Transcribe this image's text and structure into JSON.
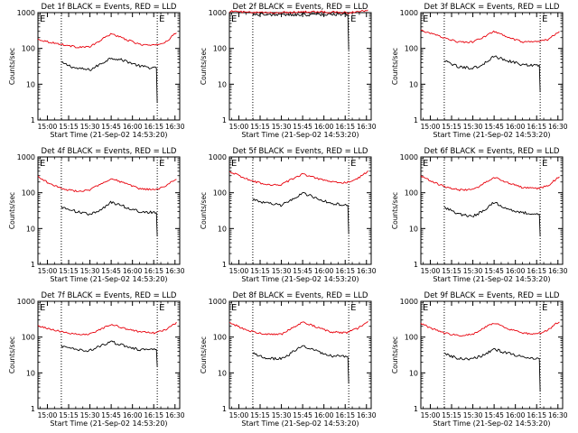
{
  "figure": {
    "colors": {
      "events": "#000000",
      "lld": "#e8000b",
      "axes": "#000000"
    }
  },
  "chart_data": [
    {
      "type": "line",
      "title": "Det 1f BLACK = Events, RED = LLD",
      "xlabel": "Start Time (21-Sep-02 14:53:20)",
      "ylabel": "Counts/sec",
      "x_ticks": [
        "15:00",
        "15:15",
        "15:30",
        "15:45",
        "16:00",
        "16:15",
        "16:30"
      ],
      "x_tick_seconds": [
        400,
        1300,
        2200,
        3100,
        4000,
        4900,
        5800
      ],
      "xlim": [
        0,
        6000
      ],
      "ylim": [
        1,
        1000
      ],
      "y_scale": "log",
      "y_ticks": [
        "1",
        "10",
        "100",
        "1000"
      ],
      "y_tick_values": [
        1,
        10,
        100,
        1000
      ],
      "markers": [
        {
          "label": "E",
          "t": 0
        },
        {
          "label": "E",
          "t": 5050
        }
      ],
      "vlines_seconds": [
        990,
        5050
      ],
      "series": [
        {
          "name": "Events",
          "color": "#000000",
          "x": [
            990,
            1600,
            2200,
            2600,
            3100,
            3700,
            4300,
            4900,
            5050
          ],
          "y": [
            40,
            28,
            25,
            35,
            55,
            45,
            32,
            28,
            28
          ],
          "end_drop": 3
        },
        {
          "name": "LLD",
          "color": "#e8000b",
          "x": [
            0,
            500,
            990,
            1600,
            2200,
            2600,
            3100,
            3700,
            4300,
            4900,
            5400,
            5900
          ],
          "y": [
            180,
            150,
            130,
            110,
            110,
            160,
            260,
            180,
            130,
            120,
            150,
            290
          ]
        }
      ]
    },
    {
      "type": "line",
      "title": "Det 2f BLACK = Events, RED = LLD",
      "xlabel": "Start Time (21-Sep-02 14:53:20)",
      "ylabel": "Counts/sec",
      "x_ticks": [
        "15:00",
        "15:15",
        "15:30",
        "15:45",
        "16:00",
        "16:15",
        "16:30"
      ],
      "x_tick_seconds": [
        400,
        1300,
        2200,
        3100,
        4000,
        4900,
        5800
      ],
      "xlim": [
        0,
        6000
      ],
      "ylim": [
        1,
        1000
      ],
      "y_scale": "log",
      "y_ticks": [
        "1",
        "10",
        "100",
        "1000"
      ],
      "y_tick_values": [
        1,
        10,
        100,
        1000
      ],
      "markers": [
        {
          "label": "E",
          "t": 0
        },
        {
          "label": "E",
          "t": 5050
        }
      ],
      "vlines_seconds": [
        990,
        5050
      ],
      "series": [
        {
          "name": "Events",
          "color": "#000000",
          "x": [
            990,
            2000,
            3000,
            4000,
            5050
          ],
          "y": [
            900,
            870,
            860,
            890,
            900
          ],
          "end_drop": 90
        },
        {
          "name": "LLD",
          "color": "#e8000b",
          "x": [
            0,
            990,
            2000,
            3000,
            4000,
            5050,
            5900
          ],
          "y": [
            1100,
            1000,
            1000,
            1050,
            1050,
            1000,
            1150
          ]
        }
      ]
    },
    {
      "type": "line",
      "title": "Det 3f BLACK = Events, RED = LLD",
      "xlabel": "Start Time (21-Sep-02 14:53:20)",
      "ylabel": "Counts/sec",
      "x_ticks": [
        "15:00",
        "15:15",
        "15:30",
        "15:45",
        "16:00",
        "16:15",
        "16:30"
      ],
      "x_tick_seconds": [
        400,
        1300,
        2200,
        3100,
        4000,
        4900,
        5800
      ],
      "xlim": [
        0,
        6000
      ],
      "ylim": [
        1,
        1000
      ],
      "y_scale": "log",
      "y_ticks": [
        "1",
        "10",
        "100",
        "1000"
      ],
      "y_tick_values": [
        1,
        10,
        100,
        1000
      ],
      "markers": [
        {
          "label": "E",
          "t": 0
        },
        {
          "label": "E",
          "t": 5050
        }
      ],
      "vlines_seconds": [
        990,
        5050
      ],
      "series": [
        {
          "name": "Events",
          "color": "#000000",
          "x": [
            990,
            1600,
            2200,
            2600,
            3100,
            3700,
            4300,
            4900,
            5050
          ],
          "y": [
            45,
            30,
            28,
            35,
            60,
            45,
            35,
            33,
            35
          ],
          "end_drop": 6
        },
        {
          "name": "LLD",
          "color": "#e8000b",
          "x": [
            0,
            500,
            990,
            1600,
            2200,
            2600,
            3100,
            3700,
            4300,
            4900,
            5400,
            5900
          ],
          "y": [
            320,
            250,
            200,
            150,
            150,
            200,
            300,
            200,
            150,
            150,
            180,
            310
          ]
        }
      ]
    },
    {
      "type": "line",
      "title": "Det 4f BLACK = Events, RED = LLD",
      "xlabel": "Start Time (21-Sep-02 14:53:20)",
      "ylabel": "Counts/sec",
      "x_ticks": [
        "15:00",
        "15:15",
        "15:30",
        "15:45",
        "16:00",
        "16:15",
        "16:30"
      ],
      "x_tick_seconds": [
        400,
        1300,
        2200,
        3100,
        4000,
        4900,
        5800
      ],
      "xlim": [
        0,
        6000
      ],
      "ylim": [
        1,
        1000
      ],
      "y_scale": "log",
      "y_ticks": [
        "1",
        "10",
        "100",
        "1000"
      ],
      "y_tick_values": [
        1,
        10,
        100,
        1000
      ],
      "markers": [
        {
          "label": "E",
          "t": 0
        },
        {
          "label": "E",
          "t": 5050
        }
      ],
      "vlines_seconds": [
        990,
        5050
      ],
      "series": [
        {
          "name": "Events",
          "color": "#000000",
          "x": [
            990,
            1600,
            2200,
            2600,
            3100,
            3700,
            4300,
            4900,
            5050
          ],
          "y": [
            40,
            30,
            25,
            30,
            55,
            40,
            30,
            28,
            28
          ],
          "end_drop": 6
        },
        {
          "name": "LLD",
          "color": "#e8000b",
          "x": [
            0,
            500,
            990,
            1600,
            2200,
            2600,
            3100,
            3700,
            4300,
            4900,
            5400,
            5900
          ],
          "y": [
            280,
            180,
            130,
            110,
            120,
            170,
            250,
            180,
            130,
            120,
            150,
            260
          ]
        }
      ]
    },
    {
      "type": "line",
      "title": "Det 5f BLACK = Events, RED = LLD",
      "xlabel": "Start Time (21-Sep-02 14:53:20)",
      "ylabel": "Counts/sec",
      "x_ticks": [
        "15:00",
        "15:15",
        "15:30",
        "15:45",
        "16:00",
        "16:15",
        "16:30"
      ],
      "x_tick_seconds": [
        400,
        1300,
        2200,
        3100,
        4000,
        4900,
        5800
      ],
      "xlim": [
        0,
        6000
      ],
      "ylim": [
        1,
        1000
      ],
      "y_scale": "log",
      "y_ticks": [
        "1",
        "10",
        "100",
        "1000"
      ],
      "y_tick_values": [
        1,
        10,
        100,
        1000
      ],
      "markers": [
        {
          "label": "E",
          "t": 0
        },
        {
          "label": "E",
          "t": 5050
        }
      ],
      "vlines_seconds": [
        990,
        5050
      ],
      "series": [
        {
          "name": "Events",
          "color": "#000000",
          "x": [
            990,
            1600,
            2200,
            2600,
            3100,
            3700,
            4300,
            4900,
            5050
          ],
          "y": [
            65,
            50,
            45,
            60,
            100,
            70,
            50,
            45,
            45
          ],
          "end_drop": 7
        },
        {
          "name": "LLD",
          "color": "#e8000b",
          "x": [
            0,
            500,
            990,
            1600,
            2200,
            2600,
            3100,
            3700,
            4300,
            4900,
            5400,
            5900
          ],
          "y": [
            400,
            280,
            210,
            170,
            170,
            230,
            330,
            250,
            200,
            190,
            240,
            420
          ]
        }
      ]
    },
    {
      "type": "line",
      "title": "Det 6f BLACK = Events, RED = LLD",
      "xlabel": "Start Time (21-Sep-02 14:53:20)",
      "ylabel": "Counts/sec",
      "x_ticks": [
        "15:00",
        "15:15",
        "15:30",
        "15:45",
        "16:00",
        "16:15",
        "16:30"
      ],
      "x_tick_seconds": [
        400,
        1300,
        2200,
        3100,
        4000,
        4900,
        5800
      ],
      "xlim": [
        0,
        6000
      ],
      "ylim": [
        1,
        1000
      ],
      "y_scale": "log",
      "y_ticks": [
        "1",
        "10",
        "100",
        "1000"
      ],
      "y_tick_values": [
        1,
        10,
        100,
        1000
      ],
      "markers": [
        {
          "label": "E",
          "t": 0
        },
        {
          "label": "E",
          "t": 5050
        }
      ],
      "vlines_seconds": [
        990,
        5050
      ],
      "series": [
        {
          "name": "Events",
          "color": "#000000",
          "x": [
            990,
            1600,
            2200,
            2600,
            3100,
            3700,
            4300,
            4900,
            5050
          ],
          "y": [
            40,
            25,
            22,
            30,
            55,
            35,
            28,
            25,
            25
          ],
          "end_drop": 6
        },
        {
          "name": "LLD",
          "color": "#e8000b",
          "x": [
            0,
            500,
            990,
            1600,
            2200,
            2600,
            3100,
            3700,
            4300,
            4900,
            5400,
            5900
          ],
          "y": [
            300,
            200,
            150,
            120,
            120,
            170,
            270,
            190,
            140,
            130,
            160,
            300
          ]
        }
      ]
    },
    {
      "type": "line",
      "title": "Det 7f BLACK = Events, RED = LLD",
      "xlabel": "Start Time (21-Sep-02 14:53:20)",
      "ylabel": "Counts/sec",
      "x_ticks": [
        "15:00",
        "15:15",
        "15:30",
        "15:45",
        "16:00",
        "16:15",
        "16:30"
      ],
      "x_tick_seconds": [
        400,
        1300,
        2200,
        3100,
        4000,
        4900,
        5800
      ],
      "xlim": [
        0,
        6000
      ],
      "ylim": [
        1,
        1000
      ],
      "y_scale": "log",
      "y_ticks": [
        "1",
        "10",
        "100",
        "1000"
      ],
      "y_tick_values": [
        1,
        10,
        100,
        1000
      ],
      "markers": [
        {
          "label": "E",
          "t": 0
        },
        {
          "label": "E",
          "t": 5050
        }
      ],
      "vlines_seconds": [
        990,
        5050
      ],
      "series": [
        {
          "name": "Events",
          "color": "#000000",
          "x": [
            990,
            1600,
            2200,
            2600,
            3100,
            3700,
            4300,
            4900,
            5050
          ],
          "y": [
            55,
            45,
            42,
            55,
            75,
            55,
            45,
            45,
            45
          ],
          "end_drop": 15
        },
        {
          "name": "LLD",
          "color": "#e8000b",
          "x": [
            0,
            500,
            990,
            1600,
            2200,
            2600,
            3100,
            3700,
            4300,
            4900,
            5400,
            5900
          ],
          "y": [
            200,
            170,
            140,
            120,
            120,
            160,
            230,
            170,
            140,
            130,
            160,
            260
          ]
        }
      ]
    },
    {
      "type": "line",
      "title": "Det 8f BLACK = Events, RED = LLD",
      "xlabel": "Start Time (21-Sep-02 14:53:20)",
      "ylabel": "Counts/sec",
      "x_ticks": [
        "15:00",
        "15:15",
        "15:30",
        "15:45",
        "16:00",
        "16:15",
        "16:30"
      ],
      "x_tick_seconds": [
        400,
        1300,
        2200,
        3100,
        4000,
        4900,
        5800
      ],
      "xlim": [
        0,
        6000
      ],
      "ylim": [
        1,
        1000
      ],
      "y_scale": "log",
      "y_ticks": [
        "1",
        "10",
        "100",
        "1000"
      ],
      "y_tick_values": [
        1,
        10,
        100,
        1000
      ],
      "markers": [
        {
          "label": "E",
          "t": 0
        },
        {
          "label": "E",
          "t": 5050
        }
      ],
      "vlines_seconds": [
        990,
        5050
      ],
      "series": [
        {
          "name": "Events",
          "color": "#000000",
          "x": [
            990,
            1600,
            2200,
            2600,
            3100,
            3700,
            4300,
            4900,
            5050
          ],
          "y": [
            35,
            25,
            25,
            35,
            60,
            40,
            30,
            28,
            28
          ],
          "end_drop": 5
        },
        {
          "name": "LLD",
          "color": "#e8000b",
          "x": [
            0,
            500,
            990,
            1600,
            2200,
            2600,
            3100,
            3700,
            4300,
            4900,
            5400,
            5900
          ],
          "y": [
            260,
            180,
            140,
            120,
            120,
            170,
            260,
            190,
            140,
            130,
            170,
            290
          ]
        }
      ]
    },
    {
      "type": "line",
      "title": "Det 9f BLACK = Events, RED = LLD",
      "xlabel": "Start Time (21-Sep-02 14:53:20)",
      "ylabel": "Counts/sec",
      "x_ticks": [
        "15:00",
        "15:15",
        "15:30",
        "15:45",
        "16:00",
        "16:15",
        "16:30"
      ],
      "x_tick_seconds": [
        400,
        1300,
        2200,
        3100,
        4000,
        4900,
        5800
      ],
      "xlim": [
        0,
        6000
      ],
      "ylim": [
        1,
        1000
      ],
      "y_scale": "log",
      "y_ticks": [
        "1",
        "10",
        "100",
        "1000"
      ],
      "y_tick_values": [
        1,
        10,
        100,
        1000
      ],
      "markers": [
        {
          "label": "E",
          "t": 0
        },
        {
          "label": "E",
          "t": 5050
        }
      ],
      "vlines_seconds": [
        990,
        5050
      ],
      "series": [
        {
          "name": "Events",
          "color": "#000000",
          "x": [
            990,
            1600,
            2200,
            2600,
            3100,
            3700,
            4300,
            4900,
            5050
          ],
          "y": [
            35,
            25,
            25,
            30,
            45,
            35,
            28,
            25,
            25
          ],
          "end_drop": 3
        },
        {
          "name": "LLD",
          "color": "#e8000b",
          "x": [
            0,
            500,
            990,
            1600,
            2200,
            2600,
            3100,
            3700,
            4300,
            4900,
            5400,
            5900
          ],
          "y": [
            240,
            170,
            130,
            110,
            120,
            170,
            250,
            170,
            130,
            120,
            160,
            290
          ]
        }
      ]
    }
  ]
}
